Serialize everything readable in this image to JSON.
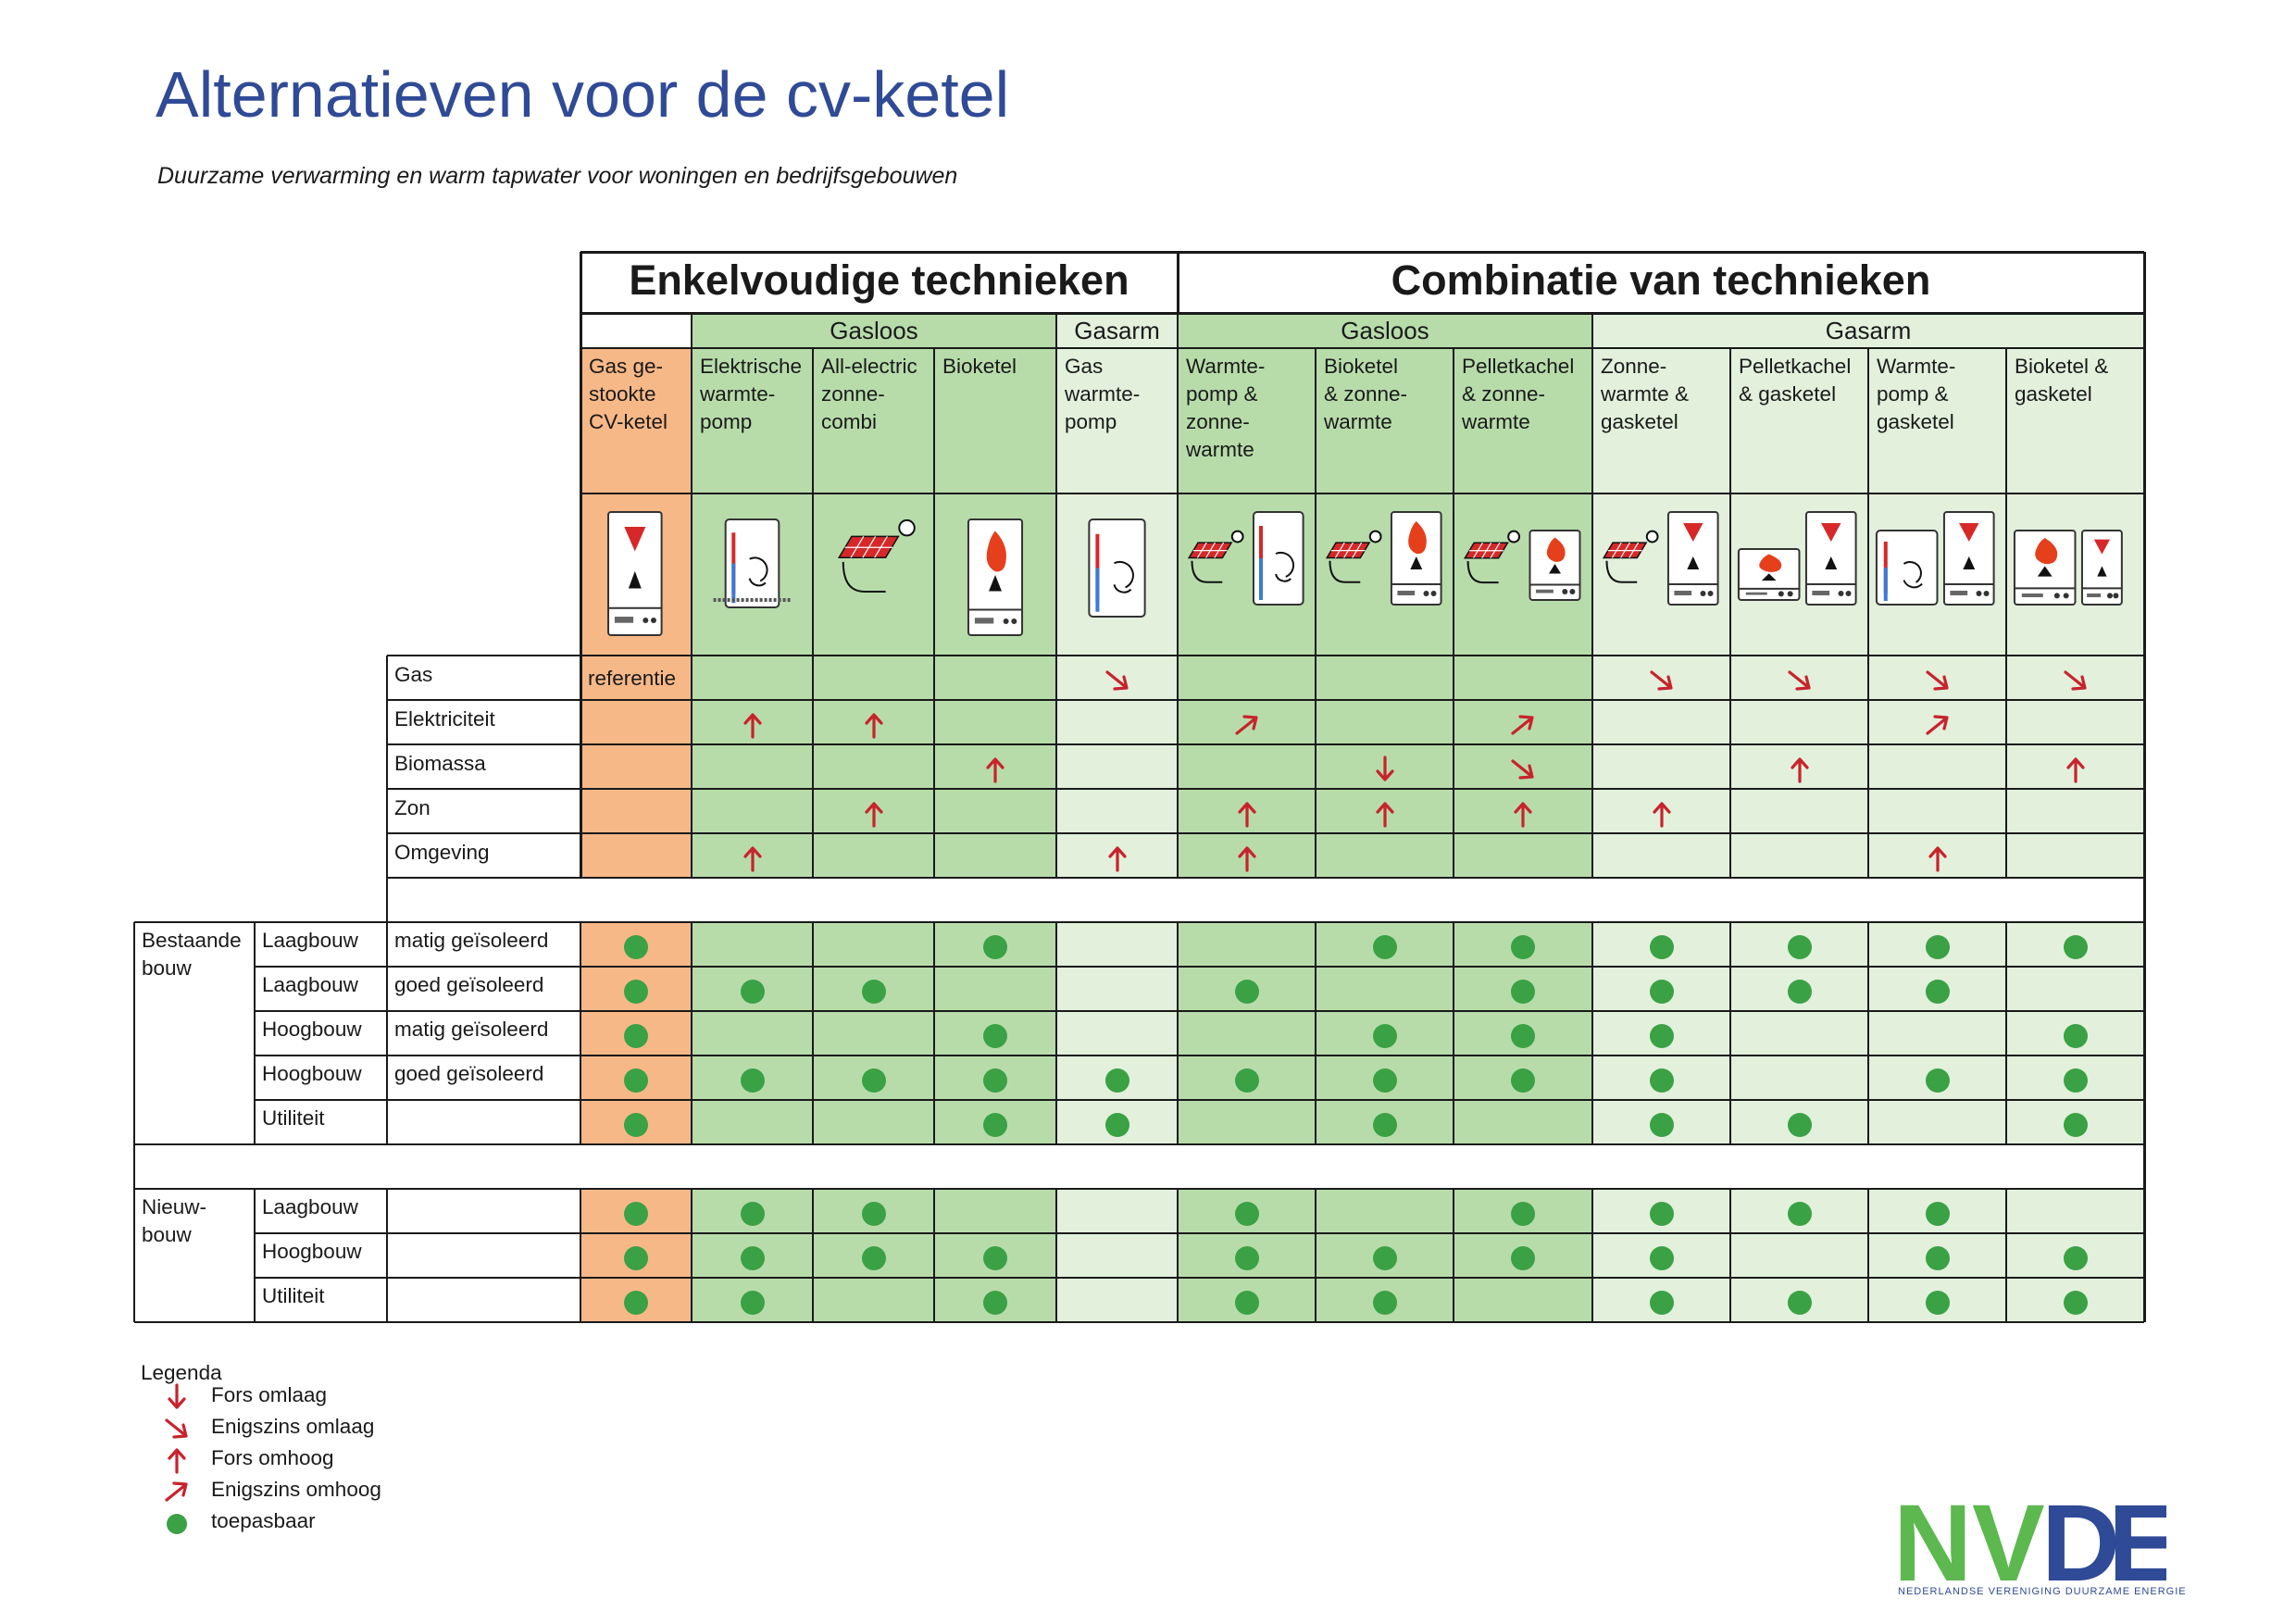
{
  "title": "Alternatieven voor de cv-ketel",
  "subtitle": "Duurzame verwarming en warm tapwater voor woningen en bedrijfsgebouwen",
  "header": {
    "single": "Enkelvoudige technieken",
    "combo": "Combinatie van technieken",
    "groups": [
      "Gasloos",
      "Gasarm",
      "Gasloos",
      "Gasarm"
    ]
  },
  "columns": [
    {
      "label": "Gas ge-\nstookte\nCV-ketel",
      "icon": "gas-boiler-icon"
    },
    {
      "label": "Elektrische\nwarmte-\npomp",
      "icon": "electric-heat-pump-icon"
    },
    {
      "label": "All-electric\nzonne-\ncombi",
      "icon": "all-electric-solar-combi-icon"
    },
    {
      "label": "Bioketel",
      "icon": "bio-boiler-icon"
    },
    {
      "label": "Gas\nwarmte-\npomp",
      "icon": "gas-heat-pump-icon"
    },
    {
      "label": "Warmte-\npomp &\nzonne-\nwarmte",
      "icon": "heat-pump-solar-icon"
    },
    {
      "label": "Bioketel\n& zonne-\nwarmte",
      "icon": "bio-boiler-solar-icon"
    },
    {
      "label": "Pelletkachel\n& zonne-\nwarmte",
      "icon": "pellet-stove-solar-icon"
    },
    {
      "label": "Zonne-\nwarmte &\ngasketel",
      "icon": "solar-gas-boiler-icon"
    },
    {
      "label": "Pelletkachel\n& gasketel",
      "icon": "pellet-stove-gas-boiler-icon"
    },
    {
      "label": "Warmte-\npomp &\ngasketel",
      "icon": "heat-pump-gas-boiler-icon"
    },
    {
      "label": "Bioketel &\ngasketel",
      "icon": "bio-boiler-gas-boiler-icon"
    }
  ],
  "energy_rows": [
    {
      "label": "Gas",
      "reference": "referentie",
      "values": [
        "ref",
        "",
        "",
        "",
        "sd",
        "",
        "",
        "",
        "sd",
        "sd",
        "sd",
        "sd"
      ]
    },
    {
      "label": "Elektriciteit",
      "values": [
        "",
        "fu",
        "fu",
        "",
        "",
        "su",
        "",
        "su",
        "",
        "",
        "su",
        ""
      ]
    },
    {
      "label": "Biomassa",
      "values": [
        "",
        "",
        "",
        "fu",
        "",
        "",
        "fd",
        "sd",
        "",
        "fu",
        "",
        "fu"
      ]
    },
    {
      "label": "Zon",
      "values": [
        "",
        "",
        "fu",
        "",
        "",
        "fu",
        "fu",
        "fu",
        "fu",
        "",
        "",
        ""
      ]
    },
    {
      "label": "Omgeving",
      "values": [
        "",
        "fu",
        "",
        "",
        "fu",
        "fu",
        "",
        "",
        "",
        "",
        "fu",
        ""
      ]
    }
  ],
  "building_sections": [
    {
      "label": "Bestaande\nbouw",
      "rows": [
        {
          "type": "Laagbouw",
          "insulation": "matig geïsoleerd",
          "dots": [
            1,
            0,
            0,
            1,
            0,
            0,
            1,
            1,
            1,
            1,
            1,
            1
          ]
        },
        {
          "type": "Laagbouw",
          "insulation": "goed geïsoleerd",
          "dots": [
            1,
            1,
            1,
            0,
            0,
            1,
            0,
            1,
            1,
            1,
            1,
            0
          ]
        },
        {
          "type": "Hoogbouw",
          "insulation": "matig geïsoleerd",
          "dots": [
            1,
            0,
            0,
            1,
            0,
            0,
            1,
            1,
            1,
            0,
            0,
            1
          ]
        },
        {
          "type": "Hoogbouw",
          "insulation": "goed geïsoleerd",
          "dots": [
            1,
            1,
            1,
            1,
            1,
            1,
            1,
            1,
            1,
            0,
            1,
            1
          ]
        },
        {
          "type": "Utiliteit",
          "insulation": "",
          "dots": [
            1,
            0,
            0,
            1,
            1,
            0,
            1,
            0,
            1,
            1,
            0,
            1
          ]
        }
      ]
    },
    {
      "label": "Nieuw-\nbouw",
      "rows": [
        {
          "type": "Laagbouw",
          "insulation": "",
          "dots": [
            1,
            1,
            1,
            0,
            0,
            1,
            0,
            1,
            1,
            1,
            1,
            0
          ]
        },
        {
          "type": "Hoogbouw",
          "insulation": "",
          "dots": [
            1,
            1,
            1,
            1,
            0,
            1,
            1,
            1,
            1,
            0,
            1,
            1
          ]
        },
        {
          "type": "Utiliteit",
          "insulation": "",
          "dots": [
            1,
            1,
            0,
            1,
            0,
            1,
            1,
            0,
            1,
            1,
            1,
            1
          ]
        }
      ]
    }
  ],
  "legend": {
    "title": "Legenda",
    "items": [
      {
        "symbol": "fd",
        "label": "Fors omlaag"
      },
      {
        "symbol": "sd",
        "label": "Enigszins omlaag"
      },
      {
        "symbol": "fu",
        "label": "Fors omhoog"
      },
      {
        "symbol": "su",
        "label": "Enigszins omhoog"
      },
      {
        "symbol": "dot",
        "label": "toepasbaar"
      }
    ]
  },
  "logo": {
    "name": "NVDE",
    "subtitle": "NEDERLANDSE VERENIGING DUURZAME ENERGIE"
  },
  "colors": {
    "title": "#2f4a96",
    "reference": "#f7b887",
    "gasloos": "#b7dcaa",
    "gasarm": "#e2f0dc",
    "arrow": "#c8232c",
    "dot": "#3aa144",
    "logo_green": "#5cb84f",
    "logo_blue": "#2f4a96"
  }
}
